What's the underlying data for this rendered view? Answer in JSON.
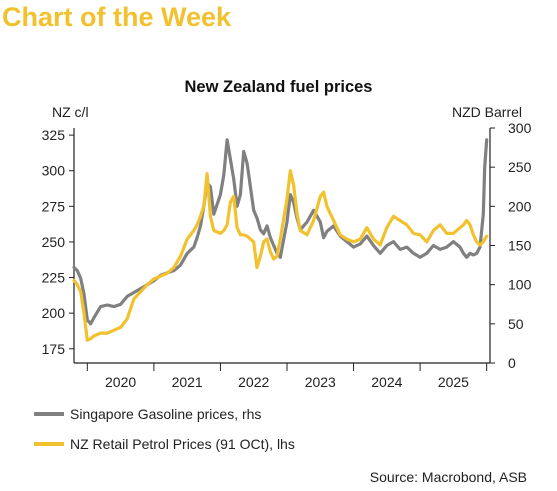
{
  "banner": "Chart of the Week",
  "source": "Source: Macrobond, ASB",
  "colors": {
    "gasoline": "#808080",
    "petrol": "#f2c12e",
    "banner": "#f2c12e"
  },
  "chart_data": {
    "type": "line",
    "title": "New Zealand fuel prices",
    "ylabel_left": "NZ c/l",
    "ylabel_right": "NZD Barrel",
    "ylim_left": [
      165,
      330
    ],
    "ylim_right": [
      0,
      300
    ],
    "yticks_left": [
      175,
      200,
      225,
      250,
      275,
      300,
      325
    ],
    "yticks_right": [
      0,
      50,
      100,
      150,
      200,
      250,
      300
    ],
    "xlim": [
      2019.8,
      2026.05
    ],
    "xtick_labels": [
      "2020",
      "2021",
      "2022",
      "2023",
      "2024",
      "2025"
    ],
    "legend_position": "bottom-left",
    "grid": false,
    "series": [
      {
        "name": "Singapore Gasoline prices, rhs",
        "axis": "right",
        "color": "#808080",
        "x": [
          2019.8,
          2019.85,
          2019.9,
          2019.95,
          2020.0,
          2020.05,
          2020.1,
          2020.2,
          2020.3,
          2020.4,
          2020.5,
          2020.6,
          2020.7,
          2020.8,
          2020.9,
          2021.0,
          2021.1,
          2021.2,
          2021.3,
          2021.4,
          2021.5,
          2021.6,
          2021.65,
          2021.7,
          2021.75,
          2021.8,
          2021.85,
          2021.9,
          2022.0,
          2022.05,
          2022.1,
          2022.15,
          2022.2,
          2022.25,
          2022.3,
          2022.35,
          2022.4,
          2022.45,
          2022.5,
          2022.55,
          2022.6,
          2022.65,
          2022.7,
          2022.75,
          2022.8,
          2022.85,
          2022.9,
          2023.0,
          2023.05,
          2023.1,
          2023.15,
          2023.2,
          2023.3,
          2023.4,
          2023.5,
          2023.55,
          2023.6,
          2023.7,
          2023.8,
          2023.9,
          2024.0,
          2024.1,
          2024.2,
          2024.3,
          2024.4,
          2024.5,
          2024.6,
          2024.7,
          2024.8,
          2024.9,
          2025.0,
          2025.1,
          2025.2,
          2025.3,
          2025.4,
          2025.5,
          2025.6,
          2025.65,
          2025.7,
          2025.75,
          2025.8,
          2025.85,
          2025.9,
          2025.95,
          2025.97,
          2026.0
        ],
        "y": [
          122,
          118,
          108,
          88,
          55,
          50,
          58,
          72,
          74,
          72,
          75,
          85,
          90,
          95,
          100,
          105,
          112,
          115,
          118,
          125,
          140,
          148,
          160,
          175,
          200,
          230,
          225,
          190,
          215,
          240,
          285,
          260,
          235,
          200,
          215,
          270,
          255,
          225,
          195,
          185,
          170,
          165,
          175,
          160,
          150,
          140,
          135,
          180,
          215,
          205,
          185,
          170,
          180,
          195,
          180,
          160,
          168,
          175,
          162,
          155,
          148,
          152,
          162,
          150,
          140,
          150,
          155,
          145,
          148,
          140,
          135,
          140,
          150,
          145,
          148,
          155,
          148,
          140,
          135,
          140,
          138,
          140,
          148,
          190,
          250,
          285
        ]
      },
      {
        "name": "NZ Retail Petrol Prices (91 OCt), lhs",
        "axis": "left",
        "color": "#f2c12e",
        "x": [
          2019.8,
          2019.85,
          2019.9,
          2019.95,
          2020.0,
          2020.05,
          2020.1,
          2020.2,
          2020.3,
          2020.4,
          2020.5,
          2020.6,
          2020.7,
          2020.8,
          2020.9,
          2021.0,
          2021.1,
          2021.2,
          2021.3,
          2021.4,
          2021.5,
          2021.6,
          2021.65,
          2021.7,
          2021.75,
          2021.8,
          2021.85,
          2021.9,
          2022.0,
          2022.05,
          2022.1,
          2022.15,
          2022.2,
          2022.25,
          2022.3,
          2022.35,
          2022.4,
          2022.45,
          2022.5,
          2022.55,
          2022.6,
          2022.65,
          2022.7,
          2022.75,
          2022.8,
          2022.85,
          2022.9,
          2023.0,
          2023.05,
          2023.1,
          2023.15,
          2023.2,
          2023.3,
          2023.4,
          2023.5,
          2023.55,
          2023.6,
          2023.7,
          2023.8,
          2023.9,
          2024.0,
          2024.1,
          2024.2,
          2024.3,
          2024.4,
          2024.5,
          2024.6,
          2024.7,
          2024.8,
          2024.9,
          2025.0,
          2025.1,
          2025.2,
          2025.3,
          2025.4,
          2025.5,
          2025.6,
          2025.65,
          2025.7,
          2025.75,
          2025.8,
          2025.85,
          2025.9,
          2025.95,
          2025.97,
          2026.0
        ],
        "y": [
          223,
          220,
          215,
          200,
          181,
          182,
          184,
          186,
          186,
          188,
          190,
          196,
          210,
          215,
          220,
          224,
          226,
          228,
          232,
          240,
          252,
          258,
          262,
          268,
          275,
          298,
          268,
          258,
          256,
          258,
          262,
          278,
          282,
          260,
          255,
          255,
          254,
          252,
          250,
          232,
          240,
          250,
          252,
          243,
          238,
          240,
          252,
          280,
          300,
          290,
          270,
          258,
          255,
          265,
          282,
          285,
          275,
          265,
          255,
          252,
          250,
          252,
          260,
          252,
          248,
          260,
          268,
          265,
          262,
          256,
          255,
          250,
          258,
          262,
          256,
          256,
          260,
          262,
          265,
          262,
          255,
          250,
          248,
          250,
          252,
          254
        ]
      }
    ]
  }
}
